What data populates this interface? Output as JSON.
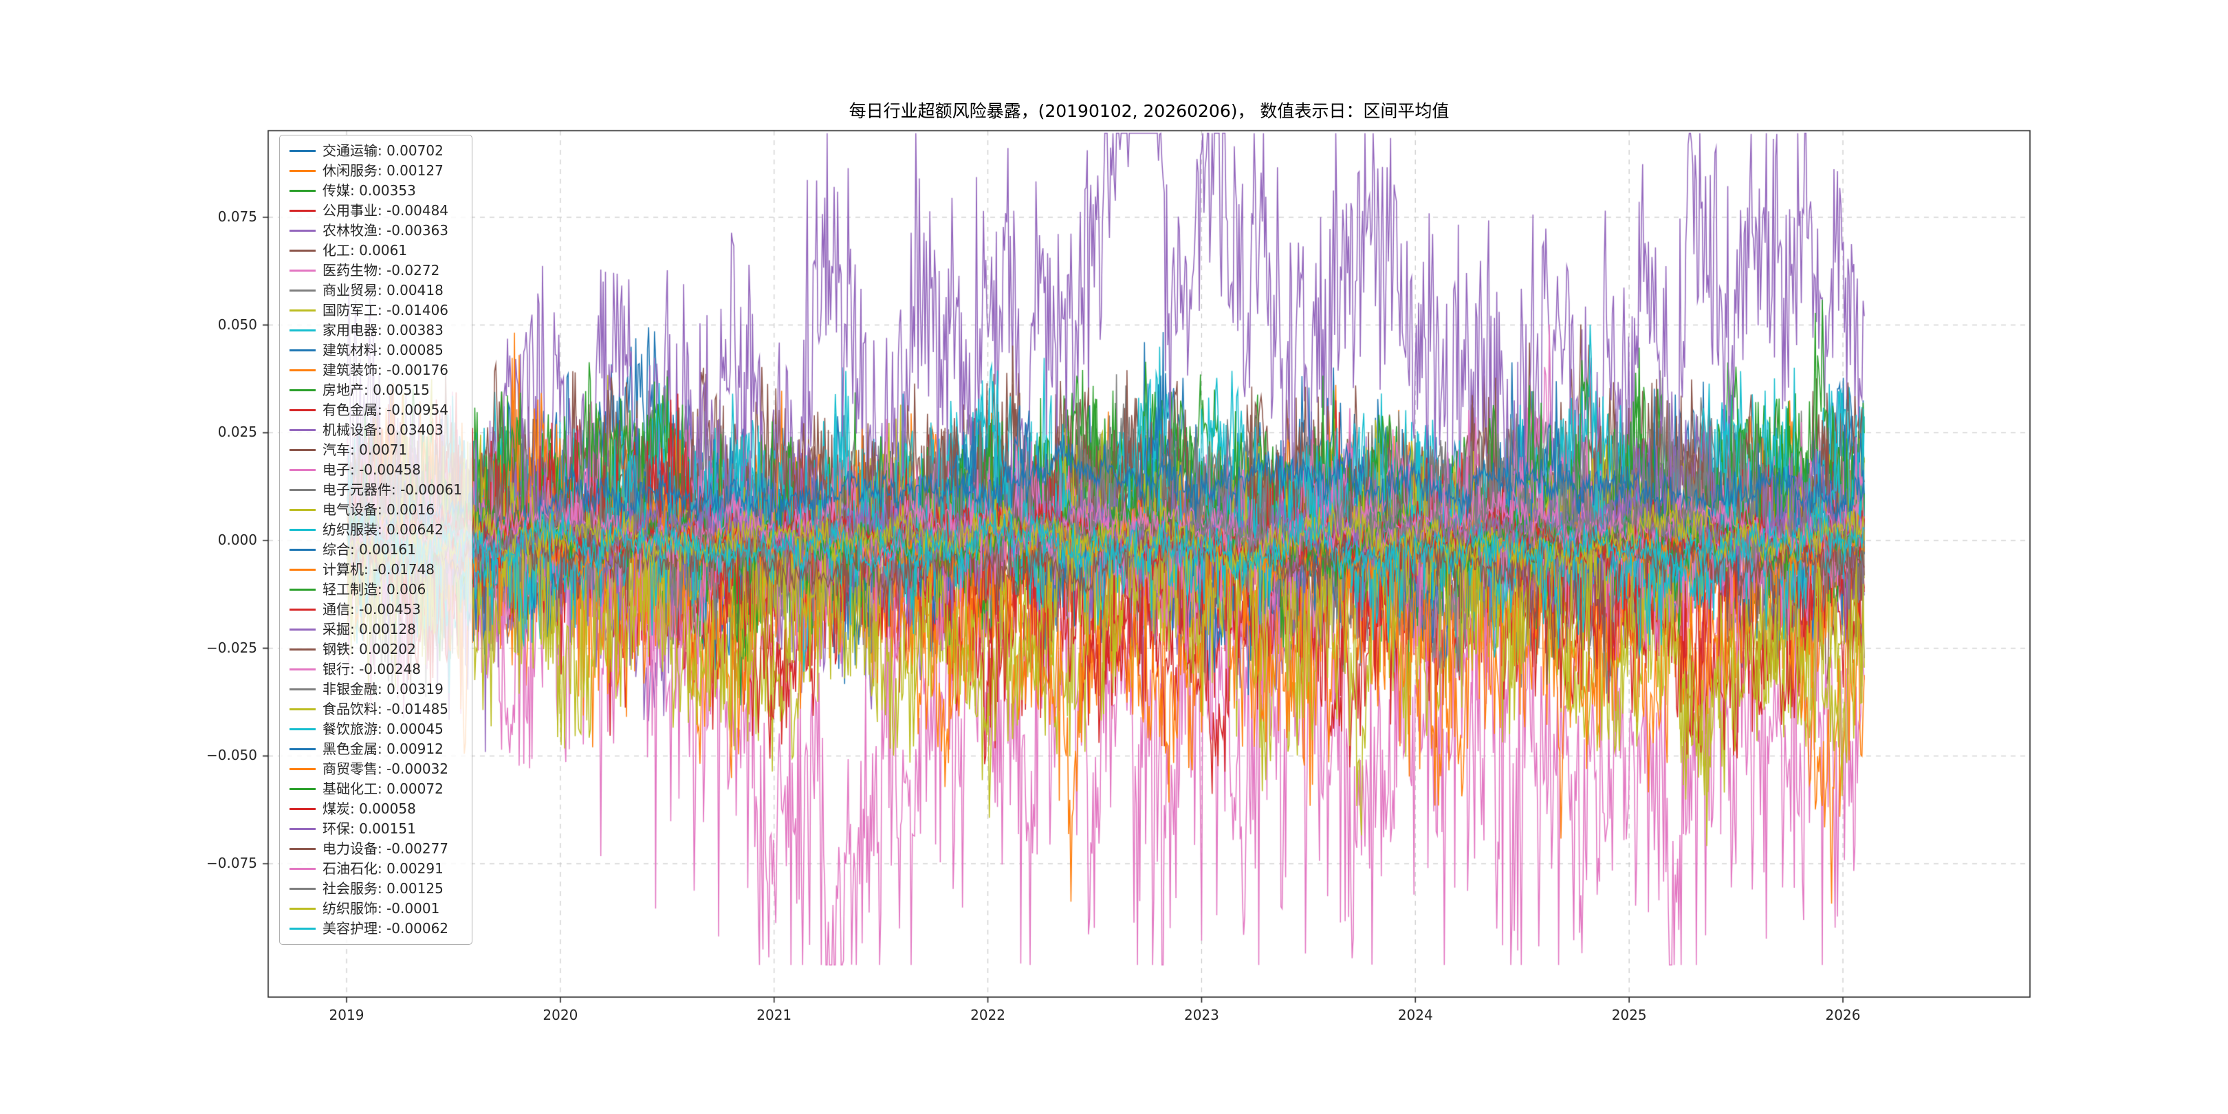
{
  "chart_data": {
    "type": "line",
    "title": "每日行业超额风险暴露，(20190102, 20260206)，  数值表示日：区间平均值",
    "x_axis": {
      "tick_labels": [
        "2019",
        "2020",
        "2021",
        "2022",
        "2023",
        "2024",
        "2025",
        "2026"
      ],
      "range_dates": [
        "20190102",
        "20260206"
      ]
    },
    "y_axis": {
      "tick_labels": [
        "0.075",
        "0.050",
        "0.025",
        "0.000",
        "−0.025",
        "−0.050",
        "−0.075"
      ],
      "tick_values": [
        0.075,
        0.05,
        0.025,
        0.0,
        -0.025,
        -0.05,
        -0.075
      ],
      "ylim": [
        -0.106,
        0.095
      ]
    },
    "grid": true,
    "legend_position": "upper left",
    "palette": [
      "#1f77b4",
      "#ff7f0e",
      "#2ca02c",
      "#d62728",
      "#9467bd",
      "#8c564b",
      "#e377c2",
      "#7f7f7f",
      "#bcbd22",
      "#17becf"
    ],
    "series": [
      {
        "name": "交通运输",
        "mean": "0.00702",
        "color": "#1f77b4"
      },
      {
        "name": "休闲服务",
        "mean": "0.00127",
        "color": "#ff7f0e"
      },
      {
        "name": "传媒",
        "mean": "0.00353",
        "color": "#2ca02c"
      },
      {
        "name": "公用事业",
        "mean": "-0.00484",
        "color": "#d62728"
      },
      {
        "name": "农林牧渔",
        "mean": "-0.00363",
        "color": "#9467bd"
      },
      {
        "name": "化工",
        "mean": "0.0061",
        "color": "#8c564b"
      },
      {
        "name": "医药生物",
        "mean": "-0.0272",
        "color": "#e377c2"
      },
      {
        "name": "商业贸易",
        "mean": "0.00418",
        "color": "#7f7f7f"
      },
      {
        "name": "国防军工",
        "mean": "-0.01406",
        "color": "#bcbd22"
      },
      {
        "name": "家用电器",
        "mean": "0.00383",
        "color": "#17becf"
      },
      {
        "name": "建筑材料",
        "mean": "0.00085",
        "color": "#1f77b4"
      },
      {
        "name": "建筑装饰",
        "mean": "-0.00176",
        "color": "#ff7f0e"
      },
      {
        "name": "房地产",
        "mean": "0.00515",
        "color": "#2ca02c"
      },
      {
        "name": "有色金属",
        "mean": "-0.00954",
        "color": "#d62728"
      },
      {
        "name": "机械设备",
        "mean": "0.03403",
        "color": "#9467bd"
      },
      {
        "name": "汽车",
        "mean": "0.0071",
        "color": "#8c564b"
      },
      {
        "name": "电子",
        "mean": "-0.00458",
        "color": "#e377c2"
      },
      {
        "name": "电子元器件",
        "mean": "-0.00061",
        "color": "#7f7f7f"
      },
      {
        "name": "电气设备",
        "mean": "0.0016",
        "color": "#bcbd22"
      },
      {
        "name": "纺织服装",
        "mean": "0.00642",
        "color": "#17becf"
      },
      {
        "name": "综合",
        "mean": "0.00161",
        "color": "#1f77b4"
      },
      {
        "name": "计算机",
        "mean": "-0.01748",
        "color": "#ff7f0e"
      },
      {
        "name": "轻工制造",
        "mean": "0.006",
        "color": "#2ca02c"
      },
      {
        "name": "通信",
        "mean": "-0.00453",
        "color": "#d62728"
      },
      {
        "name": "采掘",
        "mean": "0.00128",
        "color": "#9467bd"
      },
      {
        "name": "钢铁",
        "mean": "0.00202",
        "color": "#8c564b"
      },
      {
        "name": "银行",
        "mean": "-0.00248",
        "color": "#e377c2"
      },
      {
        "name": "非银金融",
        "mean": "0.00319",
        "color": "#7f7f7f"
      },
      {
        "name": "食品饮料",
        "mean": "-0.01485",
        "color": "#bcbd22"
      },
      {
        "name": "餐饮旅游",
        "mean": "0.00045",
        "color": "#17becf"
      },
      {
        "name": "黑色金属",
        "mean": "0.00912",
        "color": "#1f77b4"
      },
      {
        "name": "商贸零售",
        "mean": "-0.00032",
        "color": "#ff7f0e"
      },
      {
        "name": "基础化工",
        "mean": "0.00072",
        "color": "#2ca02c"
      },
      {
        "name": "煤炭",
        "mean": "0.00058",
        "color": "#d62728"
      },
      {
        "name": "环保",
        "mean": "0.00151",
        "color": "#9467bd"
      },
      {
        "name": "电力设备",
        "mean": "-0.00277",
        "color": "#8c564b"
      },
      {
        "name": "石油石化",
        "mean": "0.00291",
        "color": "#e377c2"
      },
      {
        "name": "社会服务",
        "mean": "0.00125",
        "color": "#7f7f7f"
      },
      {
        "name": "纺织服饰",
        "mean": "-0.0001",
        "color": "#bcbd22"
      },
      {
        "name": "美容护理",
        "mean": "-0.00062",
        "color": "#17becf"
      }
    ]
  }
}
